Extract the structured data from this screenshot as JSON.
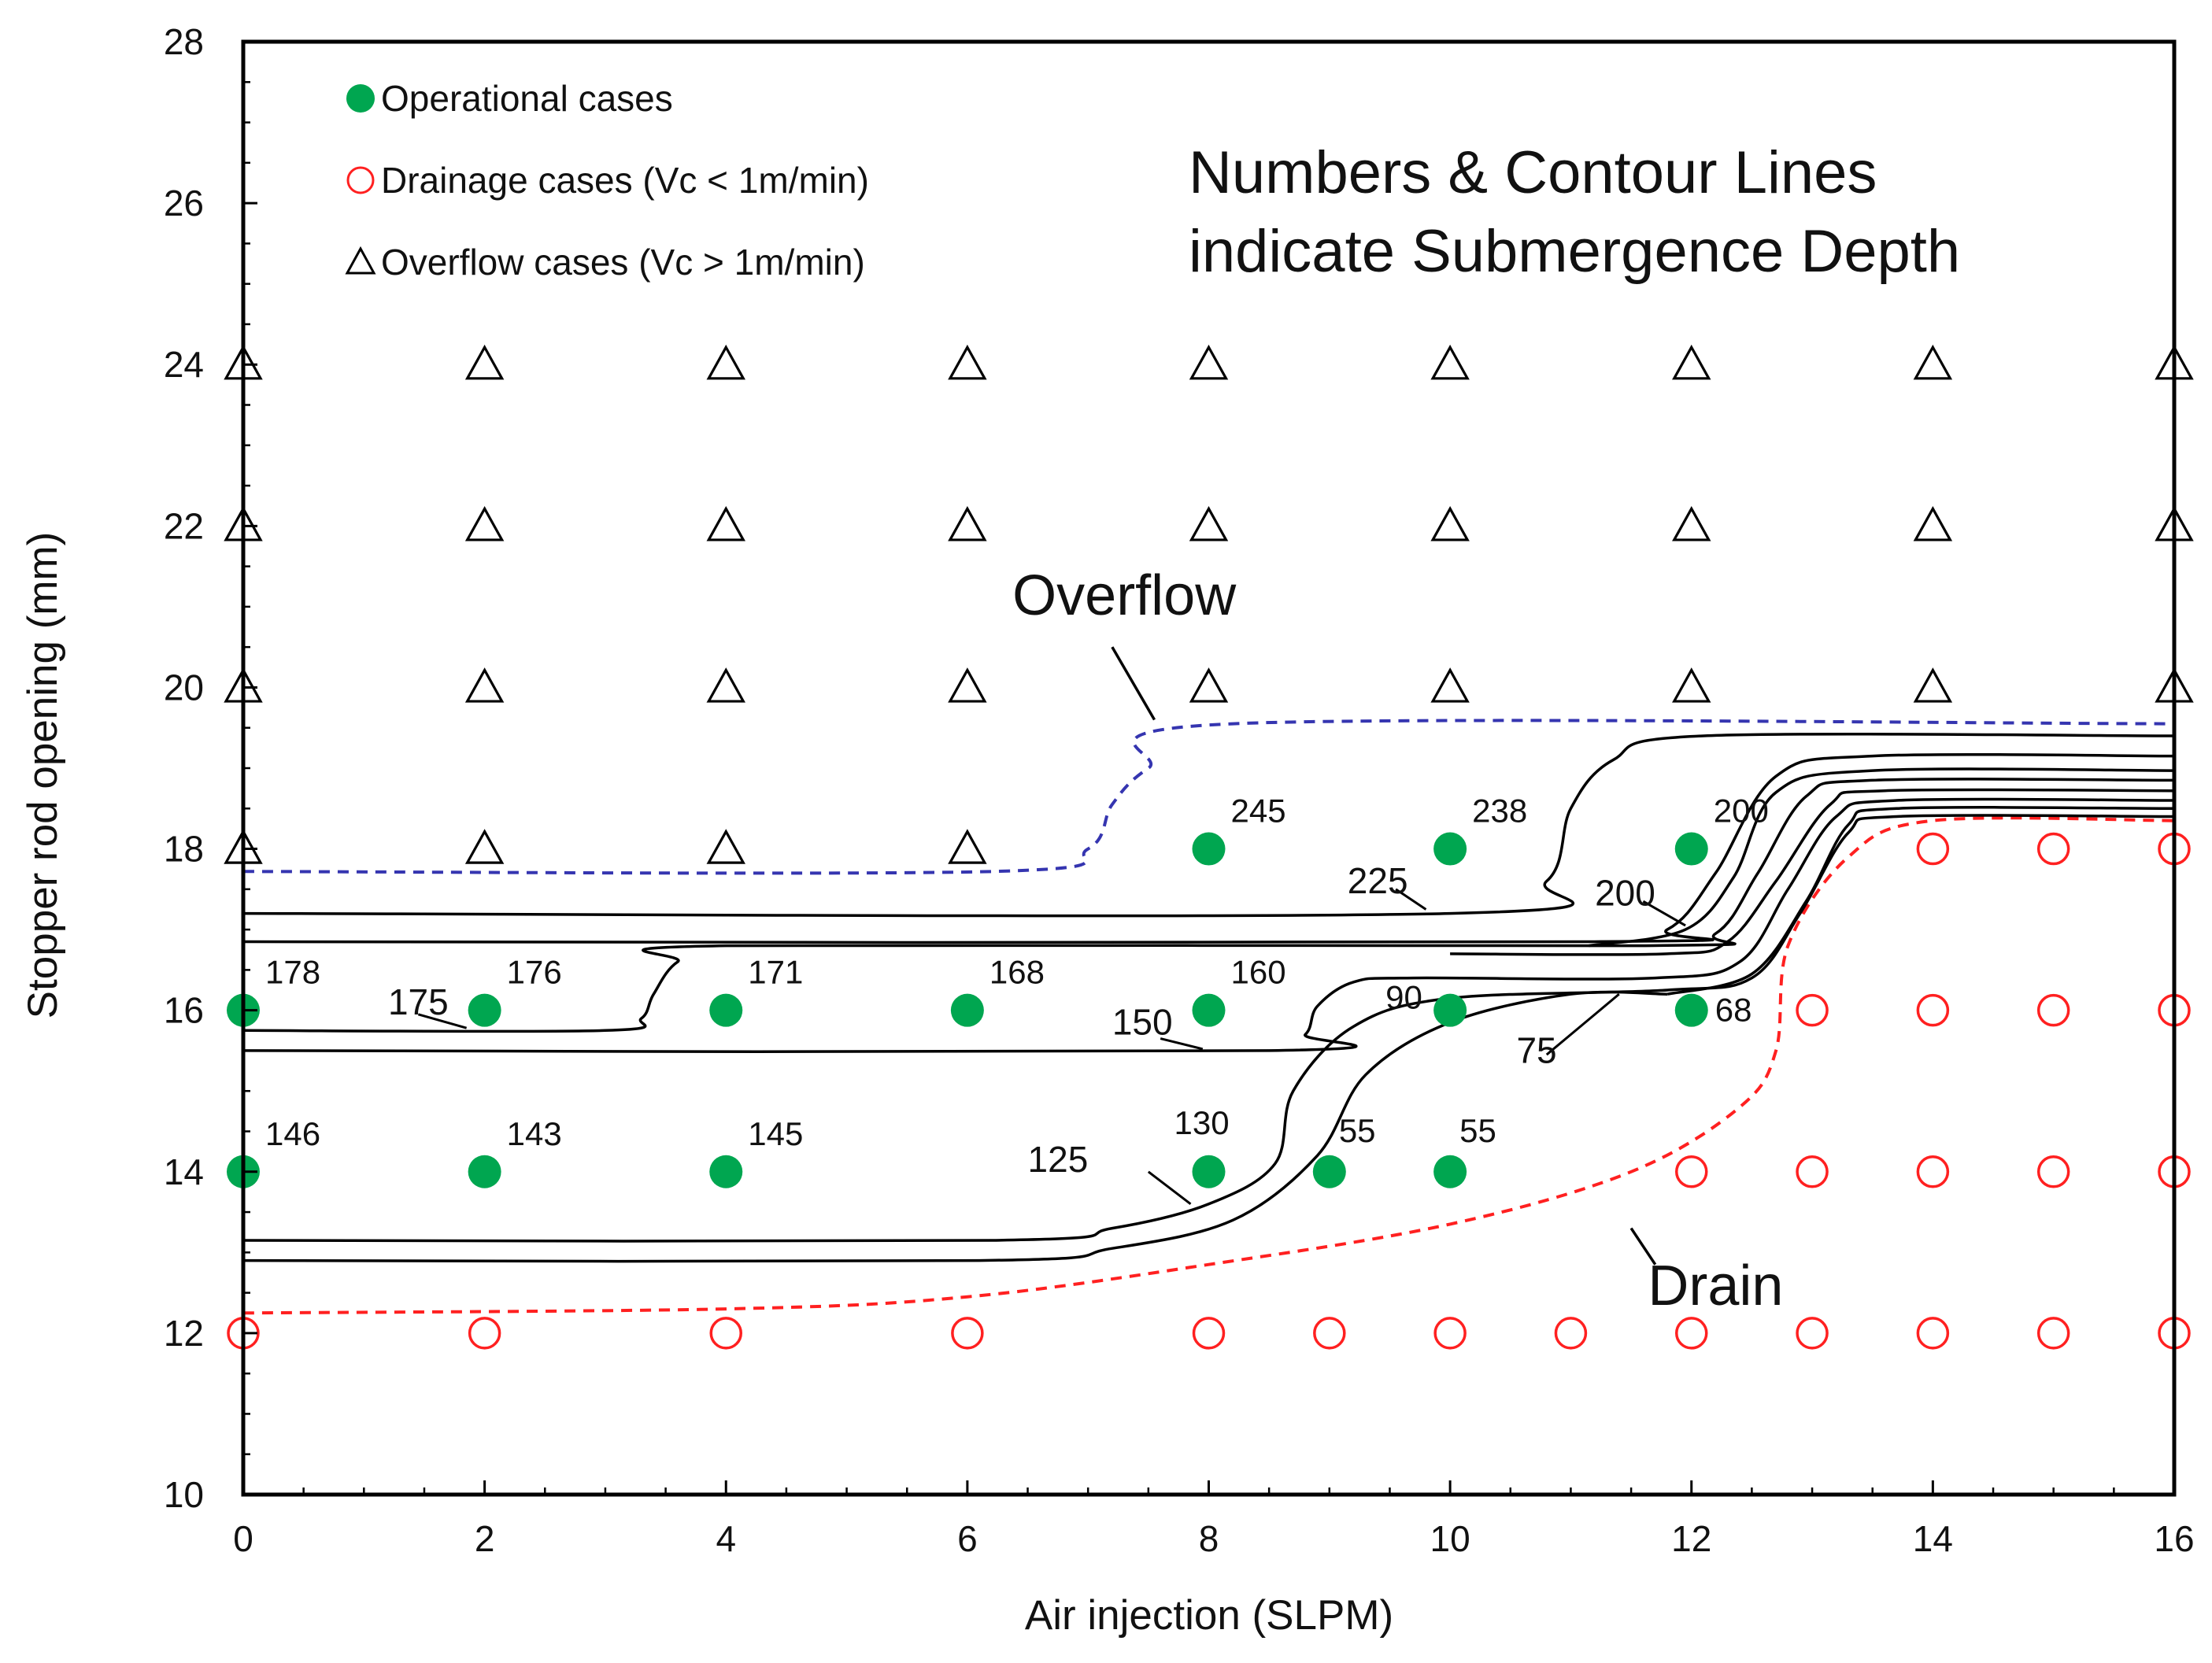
{
  "chart_data": {
    "type": "scatter",
    "title": "",
    "xlabel": "Air injection (SLPM)",
    "ylabel": "Stopper rod opening (mm)",
    "xlim": [
      0,
      16
    ],
    "ylim": [
      10,
      28
    ],
    "x_ticks": [
      0,
      2,
      4,
      6,
      8,
      10,
      12,
      14,
      16
    ],
    "y_ticks": [
      10,
      12,
      14,
      16,
      18,
      20,
      22,
      24,
      26,
      28
    ],
    "grid": false,
    "legend_position": "top-left",
    "note": [
      "Numbers & Contour Lines",
      "indicate Submergence Depth"
    ],
    "series": [
      {
        "name": "Operational cases",
        "marker": "filled-circle",
        "color": "#00a650",
        "points": [
          {
            "x": 0,
            "y": 16,
            "label": "178"
          },
          {
            "x": 2,
            "y": 16,
            "label": "176"
          },
          {
            "x": 4,
            "y": 16,
            "label": "171"
          },
          {
            "x": 6,
            "y": 16,
            "label": "168"
          },
          {
            "x": 8,
            "y": 16,
            "label": "160"
          },
          {
            "x": 10,
            "y": 16,
            "label": "90"
          },
          {
            "x": 12,
            "y": 16,
            "label": "68"
          },
          {
            "x": 0,
            "y": 14,
            "label": "146"
          },
          {
            "x": 2,
            "y": 14,
            "label": "143"
          },
          {
            "x": 4,
            "y": 14,
            "label": "145"
          },
          {
            "x": 8,
            "y": 14,
            "label": "130"
          },
          {
            "x": 9,
            "y": 14,
            "label": "55"
          },
          {
            "x": 10,
            "y": 14,
            "label": "55"
          },
          {
            "x": 8,
            "y": 18,
            "label": "245"
          },
          {
            "x": 10,
            "y": 18,
            "label": "238"
          },
          {
            "x": 12,
            "y": 18,
            "label": "200"
          }
        ]
      },
      {
        "name": "Drainage cases (Vc < 1m/min)",
        "marker": "open-circle",
        "color": "#ff2020",
        "points": [
          {
            "x": 0,
            "y": 12
          },
          {
            "x": 2,
            "y": 12
          },
          {
            "x": 4,
            "y": 12
          },
          {
            "x": 6,
            "y": 12
          },
          {
            "x": 8,
            "y": 12
          },
          {
            "x": 9,
            "y": 12
          },
          {
            "x": 10,
            "y": 12
          },
          {
            "x": 11,
            "y": 12
          },
          {
            "x": 12,
            "y": 12
          },
          {
            "x": 13,
            "y": 12
          },
          {
            "x": 14,
            "y": 12
          },
          {
            "x": 15,
            "y": 12
          },
          {
            "x": 16,
            "y": 12
          },
          {
            "x": 12,
            "y": 14
          },
          {
            "x": 13,
            "y": 14
          },
          {
            "x": 14,
            "y": 14
          },
          {
            "x": 15,
            "y": 14
          },
          {
            "x": 16,
            "y": 14
          },
          {
            "x": 13,
            "y": 16
          },
          {
            "x": 14,
            "y": 16
          },
          {
            "x": 15,
            "y": 16
          },
          {
            "x": 16,
            "y": 16
          },
          {
            "x": 14,
            "y": 18
          },
          {
            "x": 15,
            "y": 18
          },
          {
            "x": 16,
            "y": 18
          }
        ]
      },
      {
        "name": "Overflow cases (Vc > 1m/min)",
        "marker": "open-triangle",
        "color": "#000000",
        "points": [
          {
            "x": 0,
            "y": 18
          },
          {
            "x": 2,
            "y": 18
          },
          {
            "x": 4,
            "y": 18
          },
          {
            "x": 6,
            "y": 18
          },
          {
            "x": 0,
            "y": 20
          },
          {
            "x": 2,
            "y": 20
          },
          {
            "x": 4,
            "y": 20
          },
          {
            "x": 6,
            "y": 20
          },
          {
            "x": 8,
            "y": 20
          },
          {
            "x": 10,
            "y": 20
          },
          {
            "x": 12,
            "y": 20
          },
          {
            "x": 14,
            "y": 20
          },
          {
            "x": 16,
            "y": 20
          },
          {
            "x": 0,
            "y": 22
          },
          {
            "x": 2,
            "y": 22
          },
          {
            "x": 4,
            "y": 22
          },
          {
            "x": 6,
            "y": 22
          },
          {
            "x": 8,
            "y": 22
          },
          {
            "x": 10,
            "y": 22
          },
          {
            "x": 12,
            "y": 22
          },
          {
            "x": 14,
            "y": 22
          },
          {
            "x": 16,
            "y": 22
          },
          {
            "x": 0,
            "y": 24
          },
          {
            "x": 2,
            "y": 24
          },
          {
            "x": 4,
            "y": 24
          },
          {
            "x": 6,
            "y": 24
          },
          {
            "x": 8,
            "y": 24
          },
          {
            "x": 10,
            "y": 24
          },
          {
            "x": 12,
            "y": 24
          },
          {
            "x": 14,
            "y": 24
          },
          {
            "x": 16,
            "y": 24
          }
        ]
      }
    ],
    "boundaries": [
      {
        "name": "Overflow",
        "style": "dashed",
        "color": "#3535b0",
        "points": [
          [
            0,
            17.72
          ],
          [
            6.2,
            17.72
          ],
          [
            7.0,
            18.0
          ],
          [
            7.2,
            18.55
          ],
          [
            7.5,
            19.0
          ],
          [
            8.2,
            19.55
          ],
          [
            16,
            19.55
          ]
        ],
        "pointer": [
          [
            7.55,
            19.6
          ],
          [
            7.2,
            20.5
          ]
        ]
      },
      {
        "name": "Drain",
        "style": "dashed",
        "color": "#ff2020",
        "points": [
          [
            0,
            12.25
          ],
          [
            4,
            12.3
          ],
          [
            6,
            12.45
          ],
          [
            8,
            12.85
          ],
          [
            10,
            13.35
          ],
          [
            11.5,
            14.0
          ],
          [
            12.4,
            14.8
          ],
          [
            12.7,
            15.5
          ],
          [
            12.8,
            16.8
          ],
          [
            13.3,
            17.9
          ],
          [
            14,
            18.35
          ],
          [
            16,
            18.35
          ]
        ],
        "pointer": [
          [
            11.5,
            13.3
          ],
          [
            11.7,
            12.85
          ]
        ]
      }
    ],
    "contours": [
      {
        "label": "225",
        "points": [
          [
            0,
            17.2
          ],
          [
            10.0,
            17.2
          ],
          [
            10.8,
            17.6
          ],
          [
            11.0,
            18.5
          ],
          [
            11.35,
            19.1
          ],
          [
            12.1,
            19.4
          ],
          [
            16,
            19.4
          ]
        ]
      },
      {
        "label": "",
        "points": [
          [
            0,
            16.85
          ],
          [
            11.15,
            16.85
          ],
          [
            11.8,
            17.0
          ],
          [
            12.2,
            17.7
          ],
          [
            12.7,
            18.9
          ],
          [
            13.5,
            19.15
          ],
          [
            16,
            19.15
          ]
        ]
      },
      {
        "label": "200",
        "points": [
          [
            11.15,
            16.8
          ],
          [
            11.95,
            17.0
          ],
          [
            12.35,
            17.65
          ],
          [
            12.7,
            18.7
          ],
          [
            13.5,
            18.97
          ],
          [
            16,
            18.97
          ]
        ]
      },
      {
        "label": "175",
        "points": [
          [
            0,
            15.75
          ],
          [
            3.0,
            15.75
          ],
          [
            3.3,
            15.9
          ],
          [
            3.4,
            16.2
          ],
          [
            3.6,
            16.6
          ],
          [
            4.0,
            16.8
          ],
          [
            11.6,
            16.8
          ],
          [
            12.2,
            16.95
          ],
          [
            12.55,
            17.7
          ],
          [
            12.95,
            18.65
          ],
          [
            13.5,
            18.85
          ],
          [
            16,
            18.85
          ]
        ]
      },
      {
        "label": "",
        "points": [
          [
            10.0,
            16.7
          ],
          [
            11.8,
            16.7
          ],
          [
            12.3,
            16.85
          ],
          [
            12.7,
            17.6
          ],
          [
            13.15,
            18.55
          ],
          [
            13.6,
            18.72
          ],
          [
            16,
            18.72
          ]
        ]
      },
      {
        "label": "150",
        "points": [
          [
            0,
            15.5
          ],
          [
            8.5,
            15.5
          ],
          [
            8.8,
            15.7
          ],
          [
            8.9,
            16.05
          ],
          [
            9.2,
            16.35
          ],
          [
            9.7,
            16.4
          ],
          [
            11.7,
            16.4
          ],
          [
            12.4,
            16.6
          ],
          [
            12.8,
            17.5
          ],
          [
            13.2,
            18.4
          ],
          [
            13.7,
            18.6
          ],
          [
            16,
            18.6
          ]
        ]
      },
      {
        "label": "75",
        "points": [
          [
            11.8,
            16.2
          ],
          [
            12.5,
            16.45
          ],
          [
            12.95,
            17.35
          ],
          [
            13.3,
            18.3
          ],
          [
            13.7,
            18.5
          ],
          [
            16,
            18.5
          ]
        ]
      },
      {
        "label": "125",
        "points": [
          [
            0,
            13.15
          ],
          [
            6.2,
            13.15
          ],
          [
            7.2,
            13.3
          ],
          [
            8.0,
            13.6
          ],
          [
            8.55,
            14.1
          ],
          [
            8.7,
            15.0
          ],
          [
            9.2,
            15.8
          ],
          [
            10.0,
            16.15
          ],
          [
            11.8,
            16.25
          ],
          [
            12.5,
            16.4
          ],
          [
            12.9,
            17.2
          ],
          [
            13.3,
            18.2
          ],
          [
            13.7,
            18.4
          ],
          [
            16,
            18.4
          ]
        ]
      },
      {
        "label": "",
        "points": [
          [
            0,
            12.9
          ],
          [
            6.1,
            12.9
          ],
          [
            7.2,
            13.05
          ],
          [
            8.2,
            13.4
          ],
          [
            8.9,
            14.2
          ],
          [
            9.3,
            15.2
          ],
          [
            10.0,
            15.85
          ],
          [
            11.0,
            16.2
          ],
          [
            11.8,
            16.2
          ]
        ]
      }
    ],
    "contour_labels": [
      {
        "text": "225",
        "x": 9.15,
        "y": 17.45,
        "pointer": [
          [
            9.55,
            17.5
          ],
          [
            9.8,
            17.25
          ]
        ]
      },
      {
        "text": "200",
        "x": 11.2,
        "y": 17.3,
        "pointer": [
          [
            11.6,
            17.35
          ],
          [
            11.95,
            17.05
          ]
        ]
      },
      {
        "text": "175",
        "x": 1.2,
        "y": 15.95,
        "pointer": [
          [
            1.45,
            15.95
          ],
          [
            1.85,
            15.78
          ]
        ]
      },
      {
        "text": "150",
        "x": 7.2,
        "y": 15.7,
        "pointer": [
          [
            7.6,
            15.65
          ],
          [
            7.95,
            15.52
          ]
        ]
      },
      {
        "text": "125",
        "x": 6.5,
        "y": 14.0,
        "pointer": [
          [
            7.5,
            14.0
          ],
          [
            7.85,
            13.6
          ]
        ]
      },
      {
        "text": "75",
        "x": 10.55,
        "y": 15.35,
        "pointer": [
          [
            10.8,
            15.45
          ],
          [
            11.4,
            16.2
          ]
        ]
      }
    ]
  }
}
